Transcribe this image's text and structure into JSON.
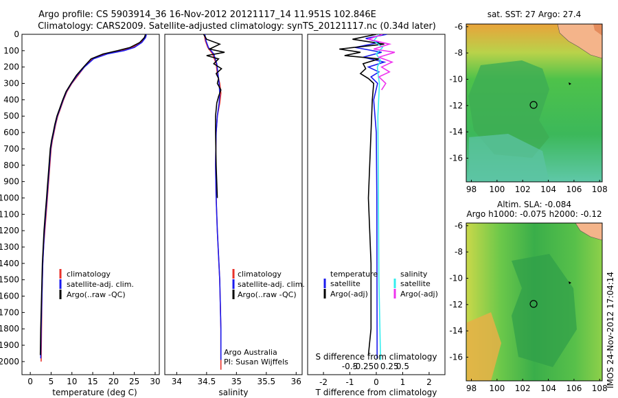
{
  "header": {
    "line1": "Argo profile: CS 5903914_36 16-Nov-2012 20121117_14 11.951S 102.846E",
    "line2": "Climatology: CARS2009. Satellite-adjusted climatology: synTS_20121117.nc (0.34d later)"
  },
  "colors": {
    "climatology": "#e8312a",
    "satellite": "#1a1aee",
    "argo": "#000000",
    "salinity_satellite": "#33eeee",
    "salinity_argo": "#ee33ee"
  },
  "chart_data": [
    {
      "type": "line",
      "name": "temperature",
      "xlabel": "temperature (deg C)",
      "xlim": [
        -2,
        31
      ],
      "ylim": [
        2080,
        0
      ],
      "xticks": [
        "0",
        "5",
        "10",
        "15",
        "20",
        "25",
        "30"
      ],
      "xtick_values": [
        0,
        5,
        10,
        15,
        20,
        25,
        30
      ],
      "yticks": [
        "0",
        "100",
        "200",
        "300",
        "400",
        "500",
        "600",
        "700",
        "800",
        "900",
        "1000",
        "1100",
        "1200",
        "1300",
        "1400",
        "1500",
        "1600",
        "1700",
        "1800",
        "1900",
        "2000"
      ],
      "ytick_values": [
        0,
        100,
        200,
        300,
        400,
        500,
        600,
        700,
        800,
        900,
        1000,
        1100,
        1200,
        1300,
        1400,
        1500,
        1600,
        1700,
        1800,
        1900,
        2000
      ],
      "legend": [
        "climatology",
        "satellite-adj. clim.",
        "Argo(..raw -QC)"
      ],
      "series": [
        {
          "name": "climatology",
          "color": "#e8312a",
          "x": [
            27.8,
            27.6,
            26.5,
            24.5,
            22,
            18,
            15,
            13,
            11.5,
            10,
            8.8,
            8,
            7.3,
            6.6,
            6.1,
            5.7,
            5.3,
            5,
            4.7,
            4.4,
            4.1,
            3.8,
            3.5,
            3.2,
            3,
            2.8,
            2.7,
            2.6
          ],
          "y": [
            0,
            20,
            50,
            80,
            100,
            120,
            150,
            200,
            250,
            300,
            350,
            400,
            450,
            500,
            550,
            600,
            650,
            700,
            800,
            900,
            1000,
            1100,
            1200,
            1300,
            1400,
            1600,
            1800,
            2000
          ]
        },
        {
          "name": "satellite-adj. clim.",
          "color": "#1a1aee",
          "x": [
            27.9,
            27.7,
            26.8,
            25,
            22.5,
            18.5,
            15.2,
            13,
            11.3,
            9.9,
            8.7,
            7.9,
            7.2,
            6.5,
            6,
            5.6,
            5.2,
            4.9,
            4.6,
            4.3,
            4,
            3.7,
            3.4,
            3.2,
            3,
            2.8,
            2.6,
            2.5
          ],
          "y": [
            0,
            20,
            50,
            80,
            100,
            120,
            150,
            200,
            250,
            300,
            350,
            400,
            450,
            500,
            550,
            600,
            650,
            700,
            800,
            900,
            1000,
            1100,
            1200,
            1300,
            1400,
            1600,
            1800,
            1980
          ]
        },
        {
          "name": "Argo(..raw -QC)",
          "color": "#000000",
          "x": [
            27.7,
            27.4,
            26.3,
            24,
            21,
            17.5,
            14.6,
            12.8,
            11.1,
            9.8,
            8.6,
            7.8,
            7.1,
            6.4,
            5.9,
            5.5,
            5.1,
            4.8,
            4.5,
            4.2,
            3.9,
            3.6,
            3.3,
            3.1,
            2.9,
            2.7,
            2.5,
            2.4
          ],
          "y": [
            0,
            20,
            50,
            80,
            100,
            120,
            150,
            200,
            250,
            300,
            350,
            400,
            450,
            500,
            550,
            600,
            650,
            700,
            800,
            900,
            1000,
            1100,
            1200,
            1300,
            1400,
            1600,
            1800,
            1960
          ]
        }
      ]
    },
    {
      "type": "line",
      "name": "salinity",
      "xlabel": "salinity",
      "xlim": [
        33.8,
        36.1
      ],
      "ylim": [
        2080,
        0
      ],
      "xticks": [
        "34",
        "34.5",
        "35",
        "35.5",
        "36"
      ],
      "xtick_values": [
        34,
        34.5,
        35,
        35.5,
        36
      ],
      "legend": [
        "climatology",
        "satellite-adj. clim.",
        "Argo(..raw -QC)"
      ],
      "annotation": [
        "Argo Australia",
        "PI: Susan Wijffels"
      ],
      "series": [
        {
          "name": "climatology",
          "color": "#e8312a",
          "x": [
            34.46,
            34.48,
            34.52,
            34.6,
            34.66,
            34.68,
            34.72,
            34.74,
            34.72,
            34.68,
            34.66,
            34.65,
            34.66,
            34.68,
            34.72,
            34.74,
            34.74
          ],
          "y": [
            0,
            40,
            80,
            120,
            180,
            240,
            300,
            360,
            420,
            500,
            600,
            800,
            1000,
            1200,
            1500,
            1800,
            2050
          ]
        },
        {
          "name": "satellite-adj. clim.",
          "color": "#1a1aee",
          "x": [
            34.47,
            34.49,
            34.53,
            34.62,
            34.67,
            34.69,
            34.71,
            34.72,
            34.71,
            34.68,
            34.66,
            34.65,
            34.66,
            34.68,
            34.72,
            34.74,
            34.74
          ],
          "y": [
            0,
            40,
            80,
            120,
            180,
            240,
            300,
            360,
            420,
            500,
            600,
            800,
            1000,
            1200,
            1500,
            1800,
            1990
          ]
        },
        {
          "name": "Argo(..raw -QC)",
          "color": "#000000",
          "x": [
            34.45,
            34.5,
            34.72,
            34.55,
            34.8,
            34.5,
            34.7,
            34.62,
            34.75,
            34.66,
            34.7,
            34.68,
            34.74,
            34.7,
            34.67,
            34.65,
            34.65,
            34.66,
            34.68
          ],
          "y": [
            0,
            30,
            60,
            90,
            110,
            130,
            150,
            180,
            210,
            240,
            270,
            300,
            340,
            380,
            420,
            500,
            600,
            800,
            1000
          ]
        }
      ]
    },
    {
      "type": "line",
      "name": "difference",
      "xlabel": "T difference from climatology",
      "xlabel_top": "S difference from climatology",
      "xlim": [
        -2.6,
        2.6
      ],
      "ylim": [
        2080,
        0
      ],
      "xticks": [
        "-2",
        "-1",
        "0",
        "1",
        "2"
      ],
      "xtick_values": [
        -2,
        -1,
        0,
        1,
        2
      ],
      "sticks": [
        "-0.5",
        "-0.25",
        "0",
        "0.25",
        "0.5"
      ],
      "stick_values": [
        -0.5,
        -0.25,
        0,
        0.25,
        0.5
      ],
      "legend_temperature": [
        "temperature",
        "satellite",
        "Argo(-adj)"
      ],
      "legend_salinity": [
        "salinity",
        "satellite",
        "Argo(-adj)"
      ],
      "series": [
        {
          "name": "temperature satellite",
          "color": "#1a1aee",
          "x": [
            0.4,
            -0.4,
            0.1,
            -0.8,
            0.2,
            -0.5,
            0.3,
            -0.3,
            0.1,
            -0.2,
            0.05,
            -0.1,
            0,
            0.02,
            0.03
          ],
          "y": [
            0,
            25,
            50,
            80,
            110,
            140,
            170,
            200,
            230,
            260,
            300,
            400,
            600,
            1000,
            1980
          ]
        },
        {
          "name": "temperature Argo(-adj)",
          "color": "#000000",
          "x": [
            0,
            -0.9,
            0.3,
            -1.4,
            -0.6,
            -1.2,
            0.1,
            -0.5,
            -0.4,
            -0.6,
            -0.3,
            -0.1,
            -0.15,
            -0.2,
            -0.25,
            -0.3,
            -0.2,
            -0.2,
            -0.3
          ],
          "y": [
            0,
            30,
            60,
            90,
            110,
            130,
            150,
            180,
            210,
            240,
            270,
            300,
            400,
            600,
            800,
            1000,
            1400,
            1800,
            1960
          ]
        },
        {
          "name": "salinity satellite",
          "color": "#33eeee",
          "x": [
            0.05,
            -0.05,
            0.12,
            0.0,
            0.08,
            0.02,
            0.04,
            0.06,
            0.03,
            0.04,
            0.05,
            0.08
          ],
          "y": [
            0,
            40,
            80,
            120,
            160,
            200,
            260,
            300,
            500,
            1000,
            1500,
            1990
          ]
        },
        {
          "name": "salinity Argo(-adj)",
          "color": "#ee33ee",
          "x": [
            0.12,
            -0.15,
            0.25,
            -0.05,
            0.35,
            0.05,
            0.3,
            0.1,
            0.25,
            0.05,
            0.18,
            0.1
          ],
          "y": [
            0,
            30,
            60,
            90,
            110,
            140,
            170,
            200,
            230,
            260,
            300,
            340
          ]
        }
      ]
    }
  ],
  "maps": [
    {
      "title": [
        "sat. SST: 27  Argo: 27.4"
      ],
      "xticks": [
        "98",
        "100",
        "102",
        "104",
        "106",
        "108"
      ],
      "xtick_values": [
        98,
        100,
        102,
        104,
        106,
        108
      ],
      "yticks": [
        "-6",
        "-8",
        "-10",
        "-12",
        "-14",
        "-16"
      ],
      "ytick_values": [
        -6,
        -8,
        -10,
        -12,
        -14,
        -16
      ],
      "xlim": [
        97.6,
        108.2
      ],
      "ylim": [
        -17.8,
        -5.8
      ],
      "marker": [
        102.85,
        -11.95
      ]
    },
    {
      "title": [
        "Altim. SLA: -0.084",
        "Argo h1000: -0.075  h2000: -0.12"
      ],
      "xticks": [
        "98",
        "100",
        "102",
        "104",
        "106",
        "108"
      ],
      "xtick_values": [
        98,
        100,
        102,
        104,
        106,
        108
      ],
      "yticks": [
        "-6",
        "-8",
        "-10",
        "-12",
        "-14",
        "-16"
      ],
      "ytick_values": [
        -6,
        -8,
        -10,
        -12,
        -14,
        -16
      ],
      "xlim": [
        97.6,
        108.2
      ],
      "ylim": [
        -17.8,
        -5.8
      ],
      "marker": [
        102.85,
        -11.95
      ]
    }
  ],
  "footer": {
    "credit": "IMOS 24-Nov-2012 17:04:14"
  }
}
